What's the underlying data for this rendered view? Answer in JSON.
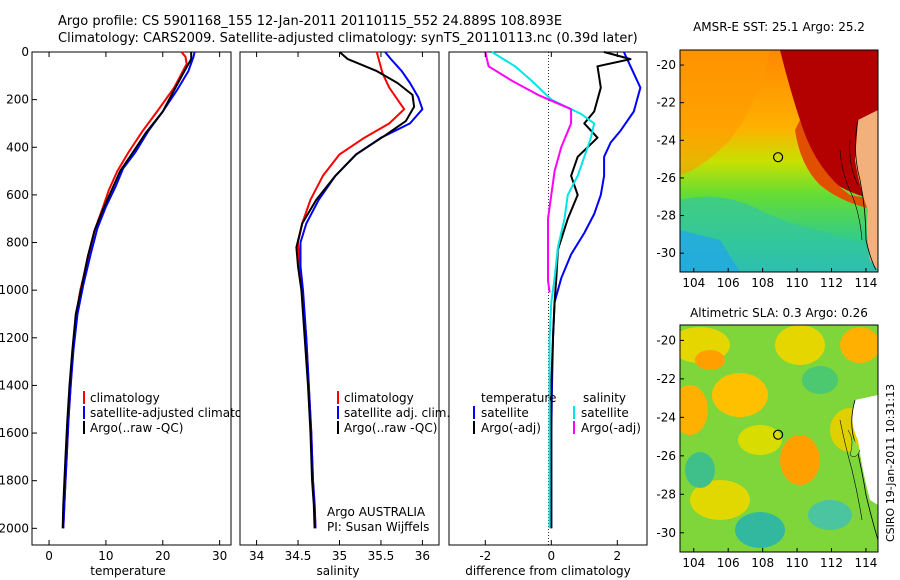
{
  "title_line1": "Argo profile: CS 5901168_155 12-Jan-2011 20110115_552 24.889S 108.893E",
  "title_line2": "Climatology: CARS2009. Satellite-adjusted climatology: synTS_20110113.nc (0.39d later)",
  "colors": {
    "climatology": "#ff0000",
    "satellite": "#0000ff",
    "argo": "#000000",
    "argo_sal_adj": "#ff00ff",
    "sat_sal": "#00e5e5"
  },
  "chart_data": [
    {
      "type": "line",
      "xlabel": "temperature",
      "xlim": [
        -3,
        32
      ],
      "xticks": [
        0,
        10,
        20,
        30
      ],
      "ylim": [
        2070,
        0
      ],
      "yticks": [
        0,
        200,
        400,
        600,
        800,
        1000,
        1200,
        1400,
        1600,
        1800,
        2000
      ],
      "legend_placement": "lower-middle",
      "series": [
        {
          "name": "climatology",
          "color": "#ff0000",
          "x": [
            23.3,
            24.0,
            24.2,
            22.0,
            19.0,
            16.5,
            14.0,
            12.0,
            10.5,
            9.5,
            8.0,
            7.0,
            5.5,
            4.8,
            4.2,
            3.8,
            3.4,
            3.1,
            2.9,
            2.7,
            2.5
          ],
          "y": [
            0,
            20,
            50,
            150,
            250,
            330,
            420,
            500,
            580,
            650,
            750,
            850,
            1000,
            1100,
            1250,
            1400,
            1550,
            1700,
            1800,
            1900,
            2000
          ]
        },
        {
          "name": "satellite-adjusted climatology",
          "color": "#0000ff",
          "x": [
            25.6,
            25.4,
            24.5,
            22.5,
            20.0,
            17.5,
            15.2,
            13.0,
            11.8,
            10.0,
            8.5,
            7.3,
            6.0,
            5.0,
            4.3,
            3.8,
            3.4,
            3.1,
            2.9,
            2.7,
            2.5
          ],
          "y": [
            0,
            20,
            80,
            160,
            250,
            330,
            420,
            490,
            560,
            650,
            740,
            850,
            980,
            1100,
            1250,
            1400,
            1550,
            1700,
            1800,
            1900,
            2000
          ]
        },
        {
          "name": "Argo(..raw -QC)",
          "color": "#000000",
          "x": [
            25.0,
            25.0,
            23.8,
            22.0,
            20.0,
            17.0,
            14.5,
            12.5,
            11.2,
            9.5,
            8.0,
            6.8,
            5.6,
            4.7,
            4.1,
            3.6,
            3.2,
            2.9,
            2.7,
            2.5,
            2.4
          ],
          "y": [
            0,
            30,
            80,
            160,
            250,
            340,
            430,
            500,
            570,
            660,
            750,
            860,
            1000,
            1100,
            1250,
            1400,
            1550,
            1700,
            1800,
            1900,
            2000
          ]
        }
      ],
      "legend": [
        "climatology",
        "satellite-adjusted climatology",
        "Argo(..raw -QC)"
      ]
    },
    {
      "type": "line",
      "xlabel": "salinity",
      "xlim": [
        33.8,
        36.2
      ],
      "xticks": [
        34,
        34.5,
        35,
        35.5,
        36
      ],
      "ylim": [
        2070,
        0
      ],
      "legend_placement": "lower-middle",
      "series": [
        {
          "name": "climatology",
          "color": "#ff0000",
          "x": [
            35.45,
            35.48,
            35.52,
            35.6,
            35.7,
            35.78,
            35.6,
            35.3,
            35.0,
            34.8,
            34.65,
            34.55,
            34.5,
            34.52,
            34.55,
            34.6,
            34.63,
            34.66,
            34.68,
            34.7,
            34.71
          ],
          "y": [
            0,
            40,
            90,
            150,
            200,
            240,
            300,
            360,
            430,
            520,
            620,
            720,
            800,
            900,
            1000,
            1200,
            1400,
            1600,
            1800,
            1900,
            2000
          ]
        },
        {
          "name": "satellite adj. clim.",
          "color": "#0000ff",
          "x": [
            35.55,
            35.62,
            35.75,
            35.85,
            35.95,
            36.0,
            35.85,
            35.5,
            35.2,
            34.95,
            34.75,
            34.6,
            34.53,
            34.53,
            34.56,
            34.6,
            34.63,
            34.66,
            34.68,
            34.7,
            34.71
          ],
          "y": [
            0,
            30,
            80,
            130,
            190,
            240,
            300,
            360,
            430,
            520,
            620,
            720,
            800,
            900,
            1000,
            1200,
            1400,
            1600,
            1800,
            1900,
            2000
          ]
        },
        {
          "name": "Argo(..raw -QC)",
          "color": "#000000",
          "x": [
            35.0,
            35.1,
            35.45,
            35.7,
            35.88,
            35.9,
            35.8,
            35.55,
            35.2,
            34.95,
            34.72,
            34.55,
            34.48,
            34.5,
            34.54,
            34.58,
            34.62,
            34.65,
            34.67,
            34.69,
            34.7
          ],
          "y": [
            0,
            30,
            80,
            130,
            180,
            230,
            290,
            350,
            430,
            520,
            620,
            720,
            820,
            900,
            1000,
            1200,
            1400,
            1600,
            1800,
            1900,
            2000
          ]
        }
      ],
      "legend": [
        "climatology",
        "satellite adj. clim.",
        "Argo(..raw -QC)"
      ],
      "annotations": [
        "Argo AUSTRALIA",
        "PI: Susan Wijffels"
      ]
    },
    {
      "type": "line",
      "xlabel": "difference from climatology",
      "xlim": [
        -3.1,
        2.9
      ],
      "xticks": [
        -2,
        0,
        2
      ],
      "ylim": [
        2070,
        0
      ],
      "legend_placement": "lower-middle",
      "series": [
        {
          "name": "temperature satellite",
          "color": "#0000ff",
          "x": [
            2.2,
            2.4,
            2.7,
            2.5,
            2.1,
            1.8,
            1.6,
            1.6,
            1.5,
            1.3,
            1.0,
            0.6,
            0.3,
            0.1,
            0.05,
            0.02,
            0.0,
            0.0,
            0.0,
            0.0
          ],
          "y": [
            0,
            60,
            150,
            250,
            330,
            380,
            440,
            520,
            600,
            680,
            760,
            850,
            950,
            1050,
            1200,
            1400,
            1600,
            1800,
            1900,
            2000
          ]
        },
        {
          "name": "temperature Argo(-adj)",
          "color": "#000000",
          "x": [
            1.6,
            2.4,
            1.4,
            1.5,
            1.3,
            1.0,
            1.4,
            0.8,
            0.6,
            0.8,
            0.5,
            0.2,
            0.15,
            0.1,
            0.05,
            0.0,
            0.0,
            0.0,
            0.0,
            0.0
          ],
          "y": [
            0,
            30,
            60,
            150,
            250,
            300,
            360,
            440,
            520,
            600,
            700,
            830,
            950,
            1050,
            1200,
            1400,
            1600,
            1800,
            1900,
            2000
          ]
        },
        {
          "name": "salinity satellite",
          "color": "#00e5e5",
          "x": [
            -1.8,
            -1.1,
            -0.6,
            0.0,
            0.9,
            1.3,
            1.2,
            1.0,
            0.8,
            0.5,
            0.4,
            0.2,
            0.1,
            0.0,
            -0.05,
            -0.05,
            -0.05,
            -0.05,
            -0.05
          ],
          "y": [
            0,
            60,
            120,
            200,
            260,
            300,
            360,
            440,
            520,
            600,
            700,
            820,
            950,
            1050,
            1200,
            1400,
            1600,
            1800,
            2000
          ]
        },
        {
          "name": "salinity Argo(-adj)",
          "color": "#ff00ff",
          "x": [
            -2.0,
            -1.9,
            -1.2,
            -0.4,
            0.6,
            0.6,
            0.3,
            0.1,
            0.0,
            -0.1,
            -0.1,
            -0.1,
            -0.1,
            -0.05
          ],
          "y": [
            0,
            60,
            120,
            180,
            240,
            300,
            400,
            500,
            600,
            700,
            800,
            900,
            960,
            1010
          ]
        }
      ],
      "legend_headers": [
        "temperature",
        "salinity"
      ],
      "legend_left": [
        "satellite",
        "Argo(-adj)"
      ],
      "legend_right": [
        "satellite",
        "Argo(-adj)"
      ]
    }
  ],
  "maps": [
    {
      "title": "AMSR-E SST: 25.1 Argo: 25.2",
      "xticks": [
        104,
        106,
        108,
        110,
        112,
        114
      ],
      "yticks": [
        -20,
        -22,
        -24,
        -26,
        -28,
        -30
      ],
      "marker": {
        "lon": 108.9,
        "lat": -24.9
      }
    },
    {
      "title": "Altimetric SLA: 0.3 Argo: 0.26",
      "xticks": [
        104,
        106,
        108,
        110,
        112,
        114
      ],
      "yticks": [
        -20,
        -22,
        -24,
        -26,
        -28,
        -30
      ],
      "marker": {
        "lon": 108.9,
        "lat": -24.9
      }
    }
  ],
  "side_label": "CSIRO 19-Jan-2011 10:31:13"
}
